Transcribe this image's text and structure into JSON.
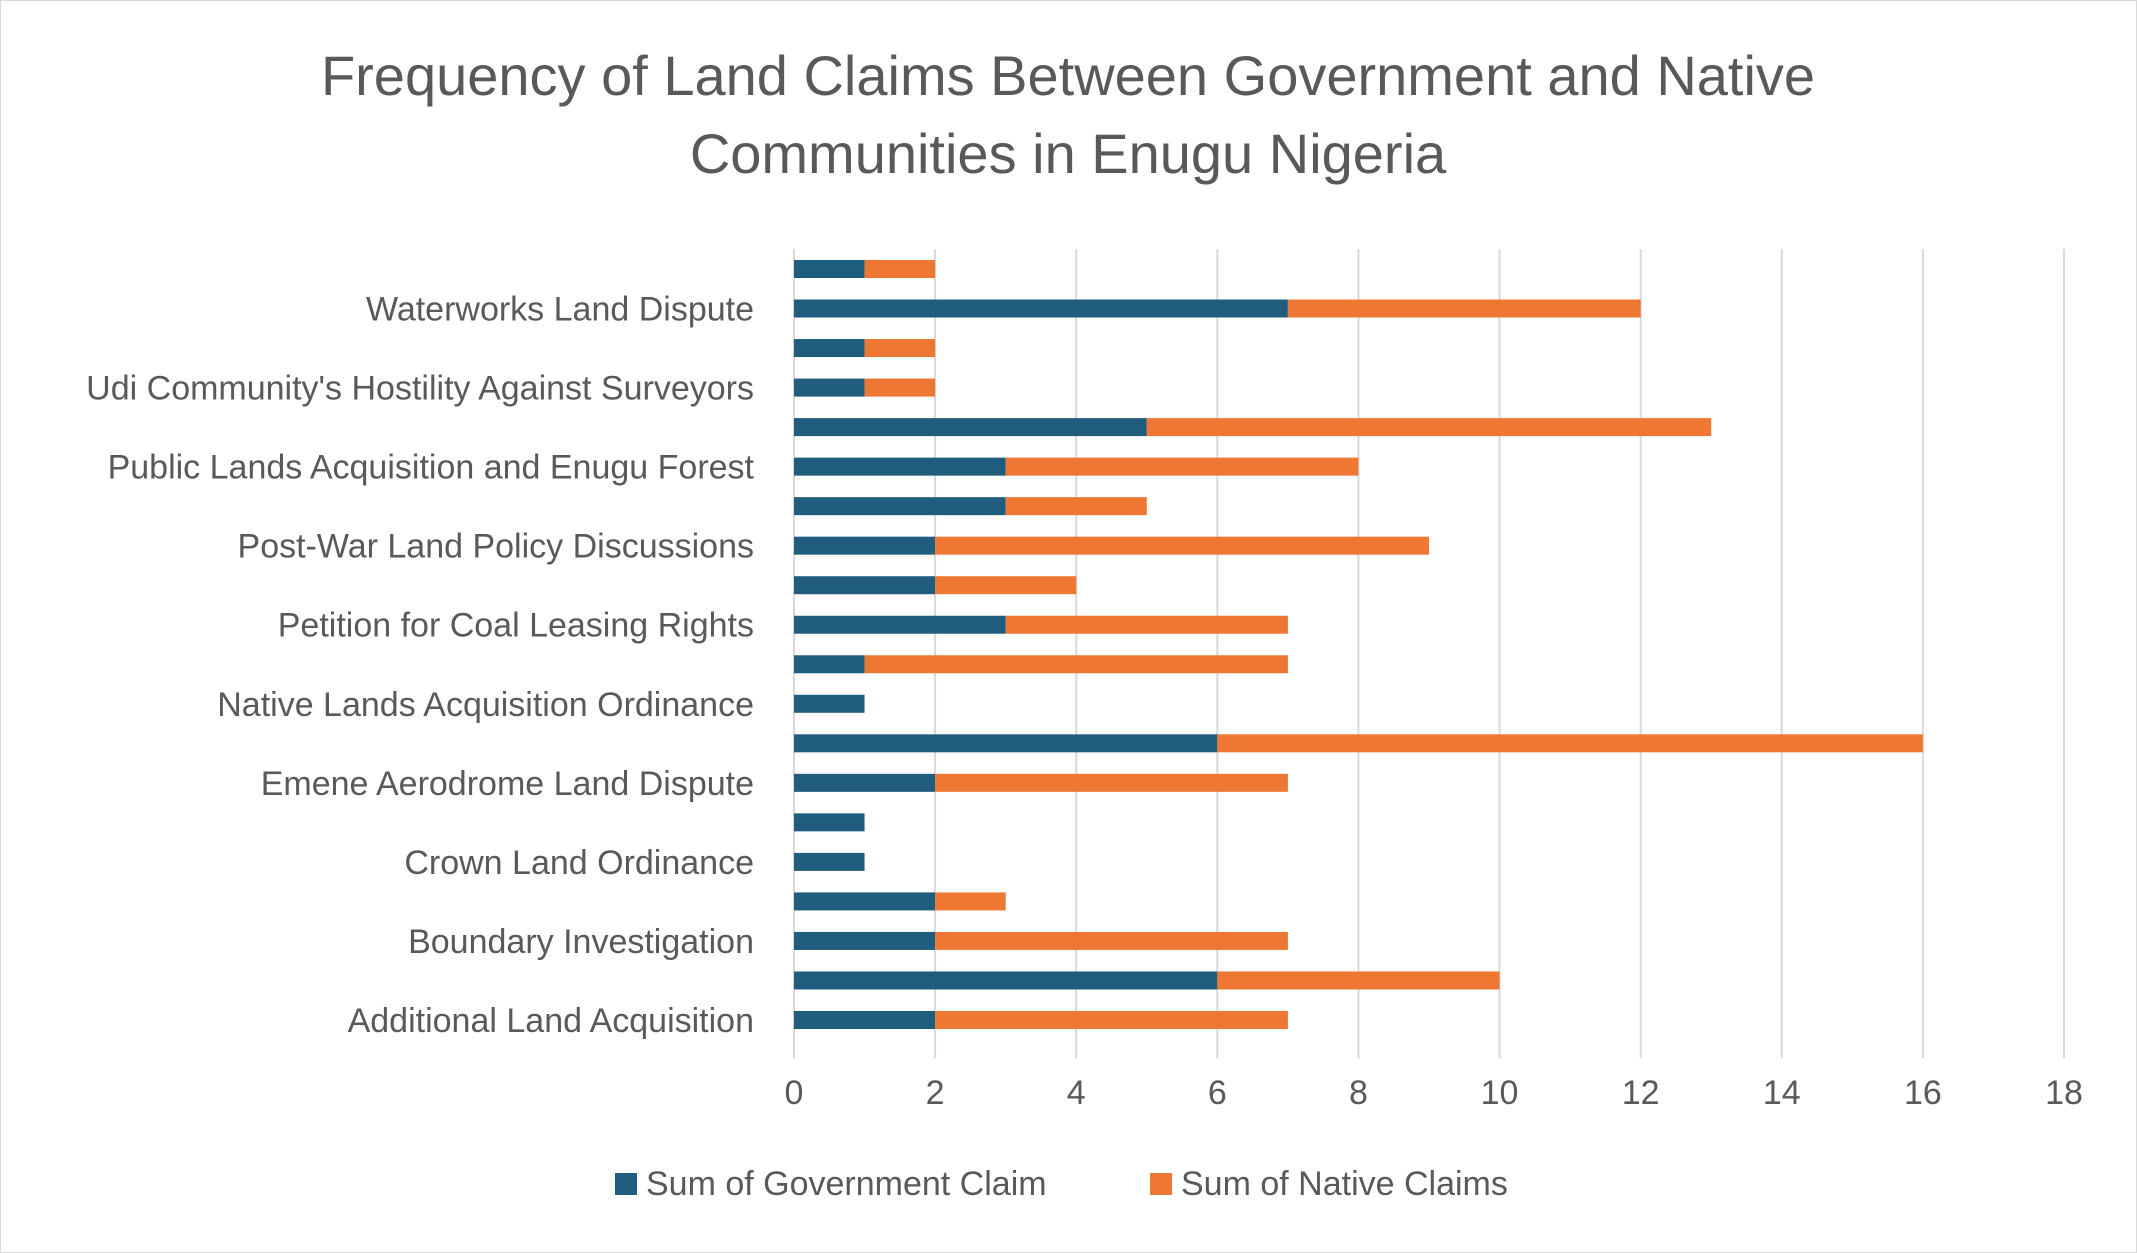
{
  "chart_data": {
    "type": "bar",
    "orientation": "horizontal",
    "stacked": true,
    "title": "Frequency of Land Claims Between Government and Native Communities in Enugu Nigeria",
    "title_lines": [
      "Frequency of Land Claims Between Government and Native",
      "Communities in Enugu Nigeria"
    ],
    "xlabel": "",
    "ylabel": "",
    "xlim": [
      0,
      18
    ],
    "x_ticks": [
      0,
      2,
      4,
      6,
      8,
      10,
      12,
      14,
      16,
      18
    ],
    "grid": "vertical",
    "legend_position": "bottom",
    "categories": [
      "Additional Land Acquisition",
      "",
      "Boundary Investigation",
      "",
      "Crown Land Ordinance",
      "",
      "Emene Aerodrome Land Dispute",
      "",
      "Native Lands Acquisition Ordinance",
      "",
      "Petition for Coal Leasing Rights",
      "",
      "Post-War Land Policy Discussions",
      "",
      "Public Lands Acquisition and Enugu Forest",
      "",
      "Udi Community's Hostility Against Surveyors",
      "",
      "Waterworks Land Dispute",
      ""
    ],
    "series": [
      {
        "name": "Sum of Government Claim",
        "color": "#1f5c7e",
        "values": [
          2,
          6,
          2,
          2,
          1,
          1,
          2,
          6,
          1,
          1,
          3,
          2,
          2,
          3,
          3,
          5,
          1,
          1,
          7,
          1
        ]
      },
      {
        "name": "Sum of Native  Claims",
        "color": "#ee7733",
        "values": [
          5,
          4,
          5,
          1,
          0,
          0,
          5,
          10,
          0,
          6,
          4,
          2,
          7,
          2,
          5,
          8,
          1,
          1,
          5,
          1
        ]
      }
    ]
  }
}
